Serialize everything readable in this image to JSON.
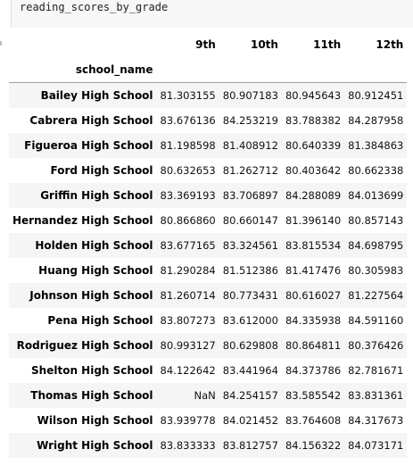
{
  "cell": {
    "code": "reading_scores_by_grade"
  },
  "table": {
    "index_name": "school_name",
    "columns": [
      "9th",
      "10th",
      "11th",
      "12th"
    ],
    "rows": [
      {
        "school": "Bailey High School",
        "values": [
          "81.303155",
          "80.907183",
          "80.945643",
          "80.912451"
        ]
      },
      {
        "school": "Cabrera High School",
        "values": [
          "83.676136",
          "84.253219",
          "83.788382",
          "84.287958"
        ]
      },
      {
        "school": "Figueroa High School",
        "values": [
          "81.198598",
          "81.408912",
          "80.640339",
          "81.384863"
        ]
      },
      {
        "school": "Ford High School",
        "values": [
          "80.632653",
          "81.262712",
          "80.403642",
          "80.662338"
        ]
      },
      {
        "school": "Griffin High School",
        "values": [
          "83.369193",
          "83.706897",
          "84.288089",
          "84.013699"
        ]
      },
      {
        "school": "Hernandez High School",
        "values": [
          "80.866860",
          "80.660147",
          "81.396140",
          "80.857143"
        ]
      },
      {
        "school": "Holden High School",
        "values": [
          "83.677165",
          "83.324561",
          "83.815534",
          "84.698795"
        ]
      },
      {
        "school": "Huang High School",
        "values": [
          "81.290284",
          "81.512386",
          "81.417476",
          "80.305983"
        ]
      },
      {
        "school": "Johnson High School",
        "values": [
          "81.260714",
          "80.773431",
          "80.616027",
          "81.227564"
        ]
      },
      {
        "school": "Pena High School",
        "values": [
          "83.807273",
          "83.612000",
          "84.335938",
          "84.591160"
        ]
      },
      {
        "school": "Rodriguez High School",
        "values": [
          "80.993127",
          "80.629808",
          "80.864811",
          "80.376426"
        ]
      },
      {
        "school": "Shelton High School",
        "values": [
          "84.122642",
          "83.441964",
          "84.373786",
          "82.781671"
        ]
      },
      {
        "school": "Thomas High School",
        "values": [
          "NaN",
          "84.254157",
          "83.585542",
          "83.831361"
        ]
      },
      {
        "school": "Wilson High School",
        "values": [
          "83.939778",
          "84.021452",
          "83.764608",
          "84.317673"
        ]
      },
      {
        "school": "Wright High School",
        "values": [
          "83.833333",
          "83.812757",
          "84.156322",
          "84.073171"
        ]
      }
    ]
  }
}
